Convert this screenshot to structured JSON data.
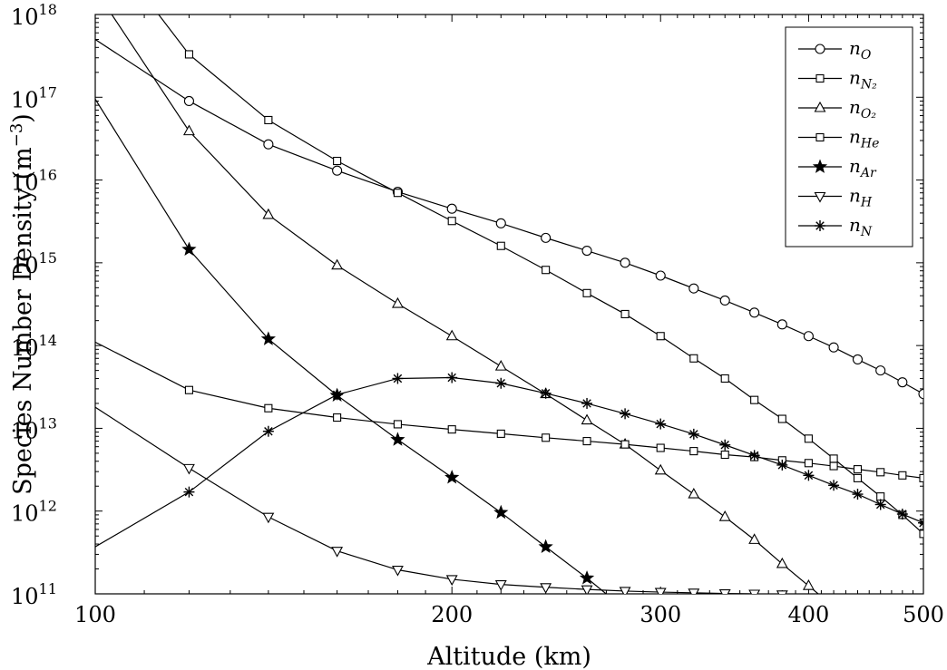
{
  "chart_data": {
    "type": "line",
    "xlabel": "Altitude (km)",
    "ylabel": "Species Number Density (m",
    "ylabel_sup": "−3",
    "ylabel_close": ")",
    "x_scale": "log",
    "y_scale": "log",
    "xlim": [
      100,
      500
    ],
    "ylim": [
      100000000000.0,
      1e+18
    ],
    "x_ticks": [
      100,
      200,
      300,
      400,
      500
    ],
    "x_tick_labels": [
      "100",
      "200",
      "300",
      "400",
      "500"
    ],
    "y_ticks": [
      100000000000.0,
      1000000000000.0,
      10000000000000.0,
      100000000000000.0,
      1000000000000000.0,
      1e+16,
      1e+17,
      1e+18
    ],
    "y_tick_labels": [
      {
        "base": "10",
        "exp": "11"
      },
      {
        "base": "10",
        "exp": "12"
      },
      {
        "base": "10",
        "exp": "13"
      },
      {
        "base": "10",
        "exp": "14"
      },
      {
        "base": "10",
        "exp": "15"
      },
      {
        "base": "10",
        "exp": "16"
      },
      {
        "base": "10",
        "exp": "17"
      },
      {
        "base": "10",
        "exp": "18"
      }
    ],
    "grid": false,
    "legend_position": "top-right",
    "series": [
      {
        "name": "n",
        "sub": "O",
        "marker": "circle",
        "x": [
          100,
          120,
          140,
          160,
          180,
          200,
          220,
          240,
          260,
          280,
          300,
          320,
          340,
          360,
          380,
          400,
          420,
          440,
          460,
          480,
          500
        ],
        "y": [
          5e+17,
          9e+16,
          2.7e+16,
          1.3e+16,
          7200000000000000.0,
          4500000000000000.0,
          3000000000000000.0,
          2000000000000000.0,
          1400000000000000.0,
          1000000000000000.0,
          700000000000000.0,
          490000000000000.0,
          350000000000000.0,
          250000000000000.0,
          180000000000000.0,
          130000000000000.0,
          95000000000000.0,
          68000000000000.0,
          50000000000000.0,
          36000000000000.0,
          26000000000000.0
        ]
      },
      {
        "name": "n",
        "sub": "N₂",
        "marker": "square",
        "x": [
          100,
          120,
          140,
          160,
          180,
          200,
          220,
          240,
          260,
          280,
          300,
          320,
          340,
          360,
          380,
          400,
          420,
          440,
          460,
          480,
          500
        ],
        "y": [
          1e+19,
          3.3e+17,
          5.3e+16,
          1.7e+16,
          7000000000000000.0,
          3200000000000000.0,
          1600000000000000.0,
          820000000000000.0,
          430000000000000.0,
          240000000000000.0,
          130000000000000.0,
          70000000000000.0,
          40000000000000.0,
          22000000000000.0,
          13000000000000.0,
          7500000000000.0,
          4300000000000.0,
          2500000000000.0,
          1500000000000.0,
          900000000000.0,
          530000000000.0
        ]
      },
      {
        "name": "n",
        "sub": "O₂",
        "marker": "triangle-up",
        "x": [
          100,
          120,
          140,
          160,
          180,
          200,
          220,
          240,
          260,
          280,
          300,
          320,
          340,
          360,
          380,
          400,
          420
        ],
        "y": [
          2e+18,
          3.9e+16,
          3800000000000000.0,
          930000000000000.0,
          320000000000000.0,
          130000000000000.0,
          56000000000000.0,
          26000000000000.0,
          12500000000000.0,
          6400000000000.0,
          3100000000000.0,
          1600000000000.0,
          850000000000.0,
          450000000000.0,
          230000000000.0,
          125000000000.0,
          70000000000.0
        ]
      },
      {
        "name": "n",
        "sub": "He",
        "marker": "square",
        "x": [
          100,
          120,
          140,
          160,
          180,
          200,
          220,
          240,
          260,
          280,
          300,
          320,
          340,
          360,
          380,
          400,
          420,
          440,
          460,
          480,
          500
        ],
        "y": [
          110000000000000.0,
          29000000000000.0,
          17500000000000.0,
          13500000000000.0,
          11200000000000.0,
          9700000000000.0,
          8600000000000.0,
          7700000000000.0,
          7000000000000.0,
          6400000000000.0,
          5800000000000.0,
          5300000000000.0,
          4800000000000.0,
          4500000000000.0,
          4100000000000.0,
          3800000000000.0,
          3500000000000.0,
          3200000000000.0,
          2950000000000.0,
          2700000000000.0,
          2500000000000.0
        ]
      },
      {
        "name": "n",
        "sub": "Ar",
        "marker": "star",
        "x": [
          100,
          120,
          140,
          160,
          180,
          200,
          220,
          240,
          260,
          280
        ],
        "y": [
          9.5e+16,
          1450000000000000.0,
          120000000000000.0,
          25000000000000.0,
          7300000000000.0,
          2550000000000.0,
          960000000000.0,
          370000000000.0,
          155000000000.0,
          65000000000.0
        ]
      },
      {
        "name": "n",
        "sub": "H",
        "marker": "triangle-down",
        "x": [
          100,
          120,
          140,
          160,
          180,
          200,
          220,
          240,
          260,
          280,
          300,
          320,
          340,
          360,
          380
        ],
        "y": [
          18000000000000.0,
          3300000000000.0,
          850000000000.0,
          330000000000.0,
          195000000000.0,
          150000000000.0,
          130000000000.0,
          120000000000.0,
          113000000000.0,
          108000000000.0,
          105000000000.0,
          103000000000.0,
          101000000000.0,
          100000000000.0,
          98000000000.0
        ]
      },
      {
        "name": "n",
        "sub": "N",
        "marker": "asterisk",
        "x": [
          100,
          120,
          140,
          160,
          180,
          200,
          220,
          240,
          260,
          280,
          300,
          320,
          340,
          360,
          380,
          400,
          420,
          440,
          460,
          480,
          500
        ],
        "y": [
          370000000000.0,
          1700000000000.0,
          9200000000000.0,
          25500000000000.0,
          40000000000000.0,
          41000000000000.0,
          35000000000000.0,
          26500000000000.0,
          20000000000000.0,
          15000000000000.0,
          11300000000000.0,
          8500000000000.0,
          6300000000000.0,
          4700000000000.0,
          3600000000000.0,
          2700000000000.0,
          2050000000000.0,
          1600000000000.0,
          1200000000000.0,
          920000000000.0,
          720000000000.0
        ]
      }
    ]
  }
}
